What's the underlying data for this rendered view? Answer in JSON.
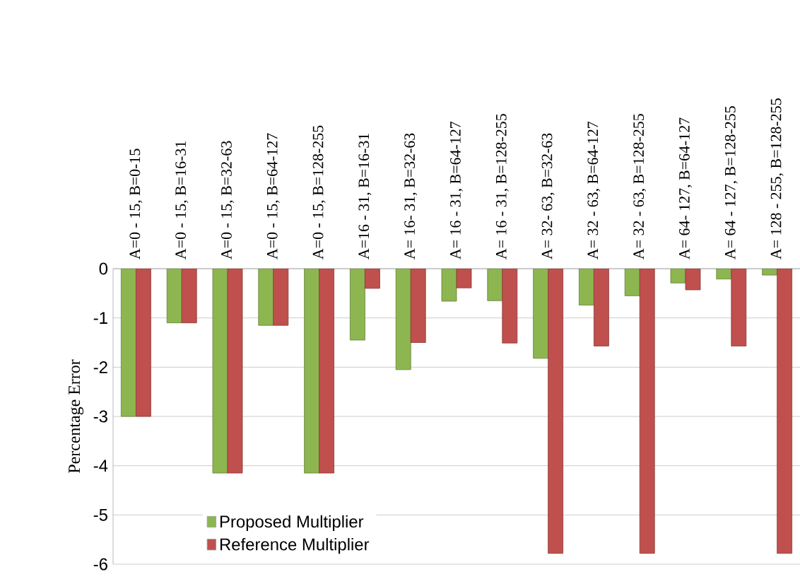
{
  "chart_data": {
    "type": "bar",
    "ylabel": "Percentage Error",
    "categories": [
      "A=0 - 15, B=0-15",
      "A=0 - 15, B=16-31",
      "A=0 - 15, B=32-63",
      "A=0 - 15, B=64-127",
      "A=0 - 15, B=128-255",
      "A=16 - 31, B=16-31",
      "A= 16- 31, B=32-63",
      "A= 16 - 31, B=64-127",
      "A= 16 - 31, B=128-255",
      "A= 32- 63, B=32-63",
      "A= 32 - 63, B=64-127",
      "A= 32 - 63, B=128-255",
      "A= 64- 127, B=64-127",
      "A= 64 - 127, B=128-255",
      "A= 128 - 255, B=128-255"
    ],
    "series": [
      {
        "name": "Proposed Multiplier",
        "color": "#8db650",
        "values": [
          -3,
          -1.1,
          -4.15,
          -1.15,
          -4.15,
          -1.45,
          -2.05,
          -0.66,
          -0.65,
          -1.82,
          -0.74,
          -0.55,
          -0.29,
          -0.21,
          -0.13
        ]
      },
      {
        "name": "Reference Multiplier",
        "color": "#c0504d",
        "values": [
          -3,
          -1.1,
          -4.15,
          -1.15,
          -4.15,
          -0.4,
          -1.5,
          -0.39,
          -1.51,
          -5.78,
          -1.57,
          -5.78,
          -0.43,
          -1.57,
          -5.78
        ]
      }
    ],
    "ylim": [
      -6,
      0
    ],
    "yticks": [
      -6,
      -5,
      -4,
      -3,
      -2,
      -1,
      0
    ],
    "grid": "y",
    "legend": "bottom left"
  }
}
